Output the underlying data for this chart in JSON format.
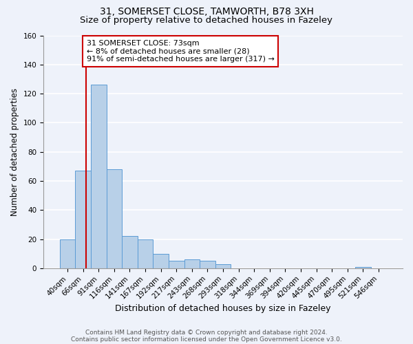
{
  "title1": "31, SOMERSET CLOSE, TAMWORTH, B78 3XH",
  "title2": "Size of property relative to detached houses in Fazeley",
  "xlabel": "Distribution of detached houses by size in Fazeley",
  "ylabel": "Number of detached properties",
  "categories": [
    "40sqm",
    "66sqm",
    "91sqm",
    "116sqm",
    "141sqm",
    "167sqm",
    "192sqm",
    "217sqm",
    "243sqm",
    "268sqm",
    "293sqm",
    "318sqm",
    "344sqm",
    "369sqm",
    "394sqm",
    "420sqm",
    "445sqm",
    "470sqm",
    "495sqm",
    "521sqm",
    "546sqm"
  ],
  "values": [
    20,
    67,
    126,
    68,
    22,
    20,
    10,
    5,
    6,
    5,
    3,
    0,
    0,
    0,
    0,
    0,
    0,
    0,
    0,
    1,
    0
  ],
  "bar_color": "#b8d0e8",
  "bar_edge_color": "#5b9bd5",
  "red_line_x": 1.18,
  "annotation_text": "31 SOMERSET CLOSE: 73sqm\n← 8% of detached houses are smaller (28)\n91% of semi-detached houses are larger (317) →",
  "annotation_box_color": "#ffffff",
  "annotation_box_edge": "#cc0000",
  "red_line_color": "#cc0000",
  "ylim": [
    0,
    160
  ],
  "yticks": [
    0,
    20,
    40,
    60,
    80,
    100,
    120,
    140,
    160
  ],
  "footer1": "Contains HM Land Registry data © Crown copyright and database right 2024.",
  "footer2": "Contains public sector information licensed under the Open Government Licence v3.0.",
  "bg_color": "#eef2fa",
  "grid_color": "#ffffff",
  "title_fontsize": 10,
  "subtitle_fontsize": 9.5,
  "annot_fontsize": 8
}
